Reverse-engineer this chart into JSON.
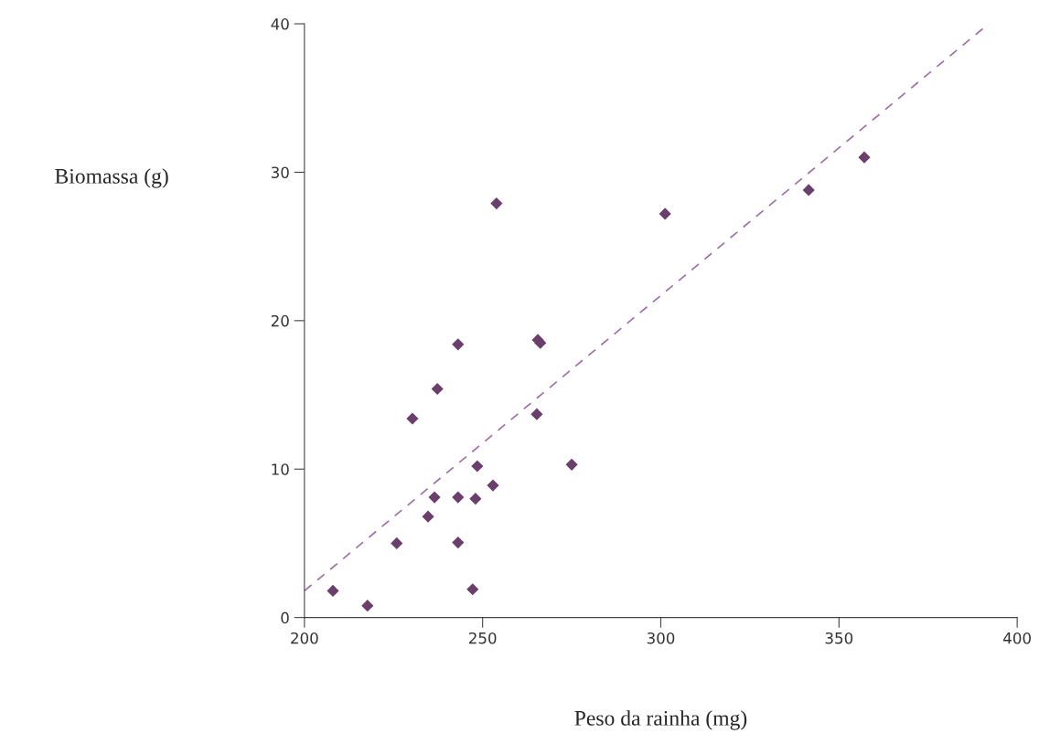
{
  "chart_data": {
    "type": "scatter",
    "xlabel": "Peso da rainha (mg)",
    "ylabel": "Biomassa (g)",
    "xlim": [
      200,
      400
    ],
    "ylim": [
      0,
      40
    ],
    "xticks": [
      200,
      250,
      300,
      350,
      400
    ],
    "yticks": [
      0,
      10,
      20,
      30,
      40
    ],
    "grid": false,
    "legend": false,
    "series": [
      {
        "color": "#6b3f6b",
        "marker": "diamond",
        "x": [
          208,
          217.7,
          225.9,
          230.3,
          234.7,
          236.5,
          237.3,
          243.1,
          243.1,
          243.1,
          247.2,
          248,
          248.5,
          252.9,
          253.9,
          265.2,
          265.5,
          266.2,
          275,
          301.2,
          341.5,
          357.1
        ],
        "values": [
          1.8,
          0.8,
          5.0,
          13.4,
          6.8,
          8.1,
          15.4,
          8.1,
          5.05,
          18.4,
          1.9,
          8.0,
          10.2,
          8.9,
          27.9,
          13.7,
          18.7,
          18.5,
          10.3,
          27.2,
          28.8,
          31.0
        ]
      },
      {
        "type": "line",
        "color": "#9e6fa8",
        "line_style": "dashed",
        "marker": "none",
        "x": [
          200,
          392
        ],
        "values": [
          1.8,
          40
        ]
      }
    ]
  }
}
